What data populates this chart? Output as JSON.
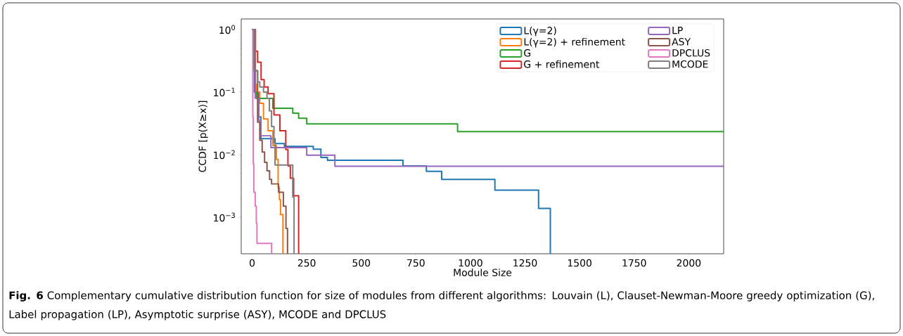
{
  "chart_data": {
    "type": "step",
    "xlabel": "Module Size",
    "ylabel": "CCDF [p(X≥x)]",
    "xlim": [
      -50,
      2160
    ],
    "ylim": [
      0.00026,
      1.47
    ],
    "log": "y",
    "xticks": [
      0,
      250,
      500,
      750,
      1000,
      1250,
      1500,
      1750,
      2000
    ],
    "yticks": [
      {
        "value": 0.001,
        "label": "10$^{−3}$"
      },
      {
        "value": 0.01,
        "label": "10$^{−2}$"
      },
      {
        "value": 0.1,
        "label": "10$^{−1}$"
      },
      {
        "value": 1,
        "label": "10$^{0}$"
      }
    ],
    "legend": "top right",
    "series": [
      {
        "name": "L(γ=2)",
        "color": "#1f77b4",
        "x": [
          0,
          10,
          30,
          40,
          105,
          148,
          280,
          315,
          345,
          691,
          798,
          868,
          1112,
          1312,
          1366
        ],
        "values": [
          1,
          0.1,
          0.04,
          0.018,
          0.015,
          0.0135,
          0.0122,
          0.009,
          0.0081,
          0.0066,
          0.0054,
          0.004,
          0.0027,
          0.00138,
          0.00026
        ]
      },
      {
        "name": "L(γ=2) + refinement",
        "color": "#ff7f0e",
        "x": [
          0,
          15,
          20,
          35,
          52,
          73,
          95,
          111,
          119,
          125,
          130,
          141
        ],
        "values": [
          1,
          0.133,
          0.1,
          0.066,
          0.037,
          0.024,
          0.014,
          0.0084,
          0.003,
          0.0019,
          0.0011,
          0.00026
        ]
      },
      {
        "name": "G",
        "color": "#2ca02c",
        "x": [
          0,
          14,
          20,
          95,
          186,
          213,
          250,
          941,
          2160
        ],
        "values": [
          1,
          0.1,
          0.079,
          0.055,
          0.046,
          0.038,
          0.031,
          0.0233,
          0.0233
        ]
      },
      {
        "name": "G + refinement",
        "color": "#d62728",
        "x": [
          0,
          15,
          25,
          41,
          55,
          73,
          100,
          127,
          154,
          164,
          175,
          190,
          213
        ],
        "values": [
          1,
          0.45,
          0.3,
          0.158,
          0.12,
          0.094,
          0.043,
          0.024,
          0.012,
          0.0066,
          0.0042,
          0.0022,
          0.00026
        ]
      },
      {
        "name": "LP",
        "color": "#9467bd",
        "x": [
          0,
          14,
          30,
          40,
          86,
          250,
          379,
          2160
        ],
        "values": [
          1,
          0.08,
          0.035,
          0.02,
          0.0129,
          0.0098,
          0.0065,
          0.0065
        ]
      },
      {
        "name": "ASY",
        "color": "#8c564b",
        "x": [
          0,
          10,
          25,
          35,
          46,
          57,
          68,
          80,
          89,
          121,
          143,
          155,
          162
        ],
        "values": [
          1,
          0.22,
          0.033,
          0.017,
          0.011,
          0.0075,
          0.0055,
          0.004,
          0.0034,
          0.0025,
          0.0015,
          0.00066,
          0.00026
        ]
      },
      {
        "name": "DPCLUS",
        "color": "#e377c2",
        "x": [
          0,
          3,
          5,
          8,
          14,
          19,
          22,
          89
        ],
        "values": [
          1,
          0.04,
          0.0071,
          0.0025,
          0.0015,
          0.0008,
          0.00038,
          0.00026
        ]
      },
      {
        "name": "MCODE",
        "color": "#7f7f7f",
        "x": [
          0,
          8,
          25,
          35,
          52,
          68,
          79,
          89,
          100,
          105,
          186,
          192
        ],
        "values": [
          1,
          0.22,
          0.145,
          0.12,
          0.1,
          0.079,
          0.05,
          0.028,
          0.0154,
          0.0068,
          0.0021,
          0.00026
        ]
      }
    ],
    "annotations": [
      "**Fig. 6** Complementary cumulative distribution function for size of modules from different algorithms: Louvain (L), Clauset-Newman-Moore greedy optimization (G), Label propagation (LP), Asymptotic surprise (ASY), MCODE and DPCLUS"
    ]
  }
}
